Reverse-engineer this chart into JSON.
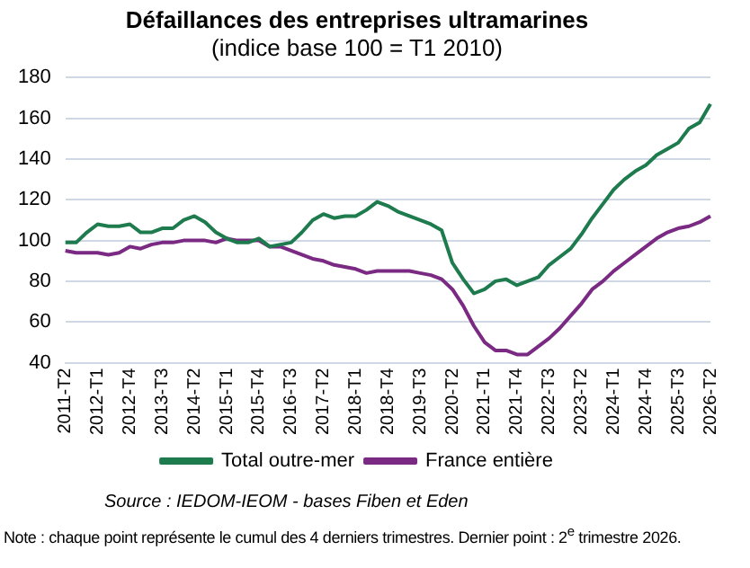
{
  "chart_data": {
    "type": "line",
    "title": "Défaillances des entreprises ultramarines",
    "subtitle": "(indice base 100 = T1 2010)",
    "categories": [
      "2011-T2",
      null,
      null,
      "2012-T1",
      null,
      null,
      "2012-T4",
      null,
      null,
      "2013-T3",
      null,
      null,
      "2014-T2",
      null,
      null,
      "2015-T1",
      null,
      null,
      "2015-T4",
      null,
      null,
      "2016-T3",
      null,
      null,
      "2017-T2",
      null,
      null,
      "2018-T1",
      null,
      null,
      "2018-T4",
      null,
      null,
      "2019-T3",
      null,
      null,
      "2020-T2",
      null,
      null,
      "2021-T1",
      null,
      null,
      "2021-T4",
      null,
      null,
      "2022-T3",
      null,
      null,
      "2023-T2",
      null,
      null,
      "2024-T1",
      null,
      null,
      "2024-T4",
      null,
      null,
      "2025-T3",
      null,
      null,
      "2026-T2"
    ],
    "series": [
      {
        "name": "Total outre-mer",
        "color": "#1e7b4e",
        "values": [
          99,
          99,
          104,
          108,
          107,
          107,
          108,
          104,
          104,
          106,
          106,
          110,
          112,
          109,
          104,
          101,
          99,
          99,
          101,
          97,
          98,
          99,
          104,
          110,
          113,
          111,
          112,
          112,
          115,
          119,
          117,
          114,
          112,
          110,
          108,
          105,
          89,
          81,
          74,
          76,
          80,
          81,
          78,
          80,
          82,
          88,
          92,
          96,
          103,
          111,
          118,
          125,
          130,
          134,
          137,
          142,
          145,
          148,
          155,
          158,
          167
        ]
      },
      {
        "name": "France entière",
        "color": "#7a2a82",
        "values": [
          95,
          94,
          94,
          94,
          93,
          94,
          97,
          96,
          98,
          99,
          99,
          100,
          100,
          100,
          99,
          101,
          100,
          100,
          100,
          97,
          97,
          95,
          93,
          91,
          90,
          88,
          87,
          86,
          84,
          85,
          85,
          85,
          85,
          84,
          83,
          81,
          76,
          68,
          58,
          50,
          46,
          46,
          44,
          44,
          48,
          52,
          57,
          63,
          69,
          76,
          80,
          85,
          89,
          93,
          97,
          101,
          104,
          106,
          107,
          109,
          112
        ]
      }
    ],
    "ylim": [
      40,
      180
    ],
    "yticks": [
      40,
      60,
      80,
      100,
      120,
      140,
      160,
      180
    ],
    "grid": "y",
    "legend": "bottom",
    "marker": "none",
    "line_style": "solid",
    "annotations": [
      "Source : IEDOM-IEOM - bases Fiben et Eden",
      "Note : chaque point représente le cumul des 4 derniers trimestres. Dernier point : 2$^{e}$ trimestre 2026."
    ]
  }
}
